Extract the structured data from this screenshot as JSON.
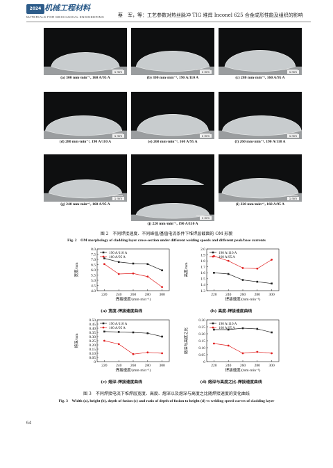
{
  "header": {
    "logo_badge": "2024",
    "journal_cn": "机械工程材料",
    "journal_en": "MATERIALS FOR MECHANICAL ENGINEERING",
    "running_title": "蔡　军，等：工艺参数对热丝脉冲 TIG 堆焊 Inconel 625 合金成形性能及组织的影响"
  },
  "figure2": {
    "panels": [
      {
        "label": "(a) 300 mm·min⁻¹, 160 A/95 A",
        "scale": "1 mm"
      },
      {
        "label": "(b) 300 mm·min⁻¹, 190 A/110 A",
        "scale": "1 mm"
      },
      {
        "label": "(c) 280 mm·min⁻¹, 160 A/95 A",
        "scale": "1 mm"
      },
      {
        "label": "(d) 280 mm·min⁻¹, 190 A/110 A",
        "scale": "1 mm"
      },
      {
        "label": "(e) 260 mm·min⁻¹, 160 A/95 A",
        "scale": "1 mm"
      },
      {
        "label": "(f) 260 mm·min⁻¹, 190 A/110 A",
        "scale": "1 mm"
      },
      {
        "label": "(g) 240 mm·min⁻¹, 160 A/95 A",
        "scale": "1 mm"
      },
      {
        "label": "(h) 240 mm·min⁻¹, 190 A/110 A",
        "scale": "1 mm"
      },
      {
        "label": "(i) 220 mm·min⁻¹, 160 A/95 A",
        "scale": "1 mm"
      },
      {
        "label": "(j) 220 mm·min⁻¹, 190 A/110 A",
        "scale": "1 mm"
      }
    ],
    "caption_cn": "图 2　不同焊接速度、不同峰值/基值电流条件下堆焊层截面的 OM 形貌",
    "caption_en": "Fig. 2　OM morphology of cladding layer cross-section under different welding speeds and different peak/base currents"
  },
  "figure3": {
    "caption_cn": "图 3　不同焊接电流下堆焊层宽度、高度、熔深以及熔深与高度之比随焊接速度的变化曲线",
    "caption_en": "Fig. 3　Width (a), height (b), depth of fusion (c) and ratio of depth of fusion to height (d) vs welding speed curves of cladding layer"
  },
  "chart_data": [
    {
      "type": "line",
      "subtitle": "(a) 宽度-焊接速度曲线",
      "xlabel": "焊接速度/(mm·min⁻¹)",
      "ylabel": "宽度/mm",
      "x": [
        220,
        240,
        260,
        280,
        300
      ],
      "ylim": [
        4.0,
        8.0
      ],
      "yticks": [
        "4.0",
        "4.5",
        "5.0",
        "5.5",
        "6.0",
        "6.5",
        "7.0",
        "7.5",
        "8.0"
      ],
      "series": [
        {
          "name": "190 A/110 A",
          "marker": "square",
          "values": [
            7.1,
            6.75,
            6.6,
            6.55,
            5.95
          ]
        },
        {
          "name": "160 A/95 A",
          "marker": "circle",
          "values": [
            6.55,
            5.6,
            5.65,
            5.35,
            4.35
          ]
        }
      ]
    },
    {
      "type": "line",
      "subtitle": "(b) 高度-焊接速度曲线",
      "xlabel": "焊接速度/(mm·min⁻¹)",
      "ylabel": "高度/mm",
      "x": [
        220,
        240,
        260,
        280,
        300
      ],
      "ylim": [
        1.3,
        2.0
      ],
      "yticks": [
        "1.3",
        "1.4",
        "1.5",
        "1.6",
        "1.7",
        "1.8",
        "1.9",
        "2.0"
      ],
      "series": [
        {
          "name": "190 A/110 A",
          "marker": "square",
          "values": [
            1.6,
            1.58,
            1.48,
            1.45,
            1.42
          ]
        },
        {
          "name": "160 A/95 A",
          "marker": "circle",
          "values": [
            1.88,
            1.8,
            1.68,
            1.67,
            1.82
          ]
        }
      ]
    },
    {
      "type": "line",
      "subtitle": "(c) 熔深-焊接速度曲线",
      "xlabel": "焊接速度/(mm·min⁻¹)",
      "ylabel": "熔深/mm",
      "x": [
        220,
        240,
        260,
        280,
        300
      ],
      "ylim": [
        0,
        0.5
      ],
      "yticks": [
        "0",
        "0.05",
        "0.10",
        "0.15",
        "0.20",
        "0.25",
        "0.30",
        "0.35",
        "0.40",
        "0.45",
        "0.50"
      ],
      "series": [
        {
          "name": "190 A/110 A",
          "marker": "square",
          "values": [
            0.36,
            0.355,
            0.35,
            0.34,
            0.3
          ]
        },
        {
          "name": "160 A/95 A",
          "marker": "circle",
          "values": [
            0.25,
            0.21,
            0.09,
            0.11,
            0.1
          ]
        }
      ]
    },
    {
      "type": "line",
      "subtitle": "(d) 熔深与高度之比-焊接速度曲线",
      "xlabel": "焊接速度/(mm·min⁻¹)",
      "ylabel": "熔深与高度之比",
      "x": [
        220,
        240,
        260,
        280,
        300
      ],
      "ylim": [
        0,
        0.3
      ],
      "yticks": [
        "0",
        "0.05",
        "0.10",
        "0.15",
        "0.20",
        "0.25",
        "0.30"
      ],
      "series": [
        {
          "name": "190 A/110 A",
          "marker": "square",
          "values": [
            0.23,
            0.23,
            0.24,
            0.235,
            0.21
          ]
        },
        {
          "name": "160 A/95 A",
          "marker": "circle",
          "values": [
            0.13,
            0.115,
            0.06,
            0.07,
            0.06
          ]
        }
      ]
    }
  ],
  "page_number": "64",
  "colors": {
    "series_1": "#222222",
    "series_2": "#e02020",
    "photo_bg": "#0e0f10",
    "journal_blue": "#2d5c8a"
  }
}
